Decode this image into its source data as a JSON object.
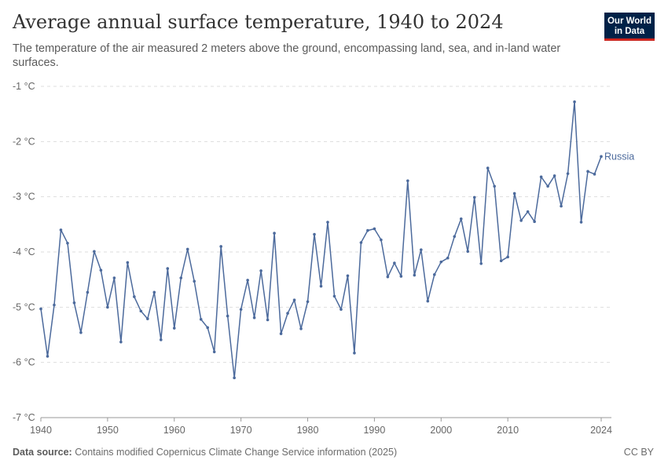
{
  "header": {
    "title": "Average annual surface temperature, 1940 to 2024",
    "subtitle": "The temperature of the air measured 2 meters above the ground, encompassing land, sea, and in-land water surfaces."
  },
  "logo": {
    "line1": "Our World",
    "line2": "in Data",
    "bg_color": "#002147",
    "accent_color": "#ce261e"
  },
  "footer": {
    "source_label": "Data source:",
    "source_text": "Contains modified Copernicus Climate Change Service information (2025)",
    "license": "CC BY"
  },
  "chart_data": {
    "type": "line",
    "ylim": [
      -7,
      -1
    ],
    "xlim": [
      1940,
      2024
    ],
    "y_ticks": [
      -1,
      -2,
      -3,
      -4,
      -5,
      -6,
      -7
    ],
    "y_tick_labels": [
      "-1 °C",
      "-2 °C",
      "-3 °C",
      "-4 °C",
      "-5 °C",
      "-6 °C",
      "-7 °C"
    ],
    "x_ticks": [
      1940,
      1950,
      1960,
      1970,
      1980,
      1990,
      2000,
      2010,
      2024
    ],
    "x_tick_labels": [
      "1940",
      "1950",
      "1960",
      "1970",
      "1980",
      "1990",
      "2000",
      "2010",
      "2024"
    ],
    "grid": "horizontal dashed",
    "series": [
      {
        "name": "Russia",
        "color": "#4c6a9c",
        "x": [
          1940,
          1941,
          1942,
          1943,
          1944,
          1945,
          1946,
          1947,
          1948,
          1949,
          1950,
          1951,
          1952,
          1953,
          1954,
          1955,
          1956,
          1957,
          1958,
          1959,
          1960,
          1961,
          1962,
          1963,
          1964,
          1965,
          1966,
          1967,
          1968,
          1969,
          1970,
          1971,
          1972,
          1973,
          1974,
          1975,
          1976,
          1977,
          1978,
          1979,
          1980,
          1981,
          1982,
          1983,
          1984,
          1985,
          1986,
          1987,
          1988,
          1989,
          1990,
          1991,
          1992,
          1993,
          1994,
          1995,
          1996,
          1997,
          1998,
          1999,
          2000,
          2001,
          2002,
          2003,
          2004,
          2005,
          2006,
          2007,
          2008,
          2009,
          2010,
          2011,
          2012,
          2013,
          2014,
          2015,
          2016,
          2017,
          2018,
          2019,
          2020,
          2021,
          2022,
          2023,
          2024
        ],
        "values": [
          -5.03,
          -5.89,
          -4.96,
          -3.6,
          -3.84,
          -4.92,
          -5.46,
          -4.73,
          -3.99,
          -4.33,
          -5.0,
          -4.47,
          -5.63,
          -4.19,
          -4.81,
          -5.07,
          -5.21,
          -4.73,
          -5.59,
          -4.3,
          -5.38,
          -4.47,
          -3.95,
          -4.53,
          -5.22,
          -5.37,
          -5.81,
          -3.9,
          -5.16,
          -6.28,
          -5.04,
          -4.51,
          -5.19,
          -4.34,
          -5.23,
          -3.66,
          -5.48,
          -5.11,
          -4.87,
          -5.39,
          -4.9,
          -3.68,
          -4.62,
          -3.46,
          -4.8,
          -5.04,
          -4.43,
          -5.83,
          -3.83,
          -3.61,
          -3.58,
          -3.78,
          -4.45,
          -4.2,
          -4.44,
          -2.71,
          -4.42,
          -3.96,
          -4.89,
          -4.41,
          -4.18,
          -4.11,
          -3.72,
          -3.4,
          -3.99,
          -3.01,
          -4.21,
          -2.48,
          -2.81,
          -4.16,
          -4.09,
          -2.94,
          -3.43,
          -3.27,
          -3.45,
          -2.64,
          -2.81,
          -2.62,
          -3.17,
          -2.58,
          -1.28,
          -3.46,
          -2.54,
          -2.59,
          -2.27
        ]
      }
    ]
  }
}
